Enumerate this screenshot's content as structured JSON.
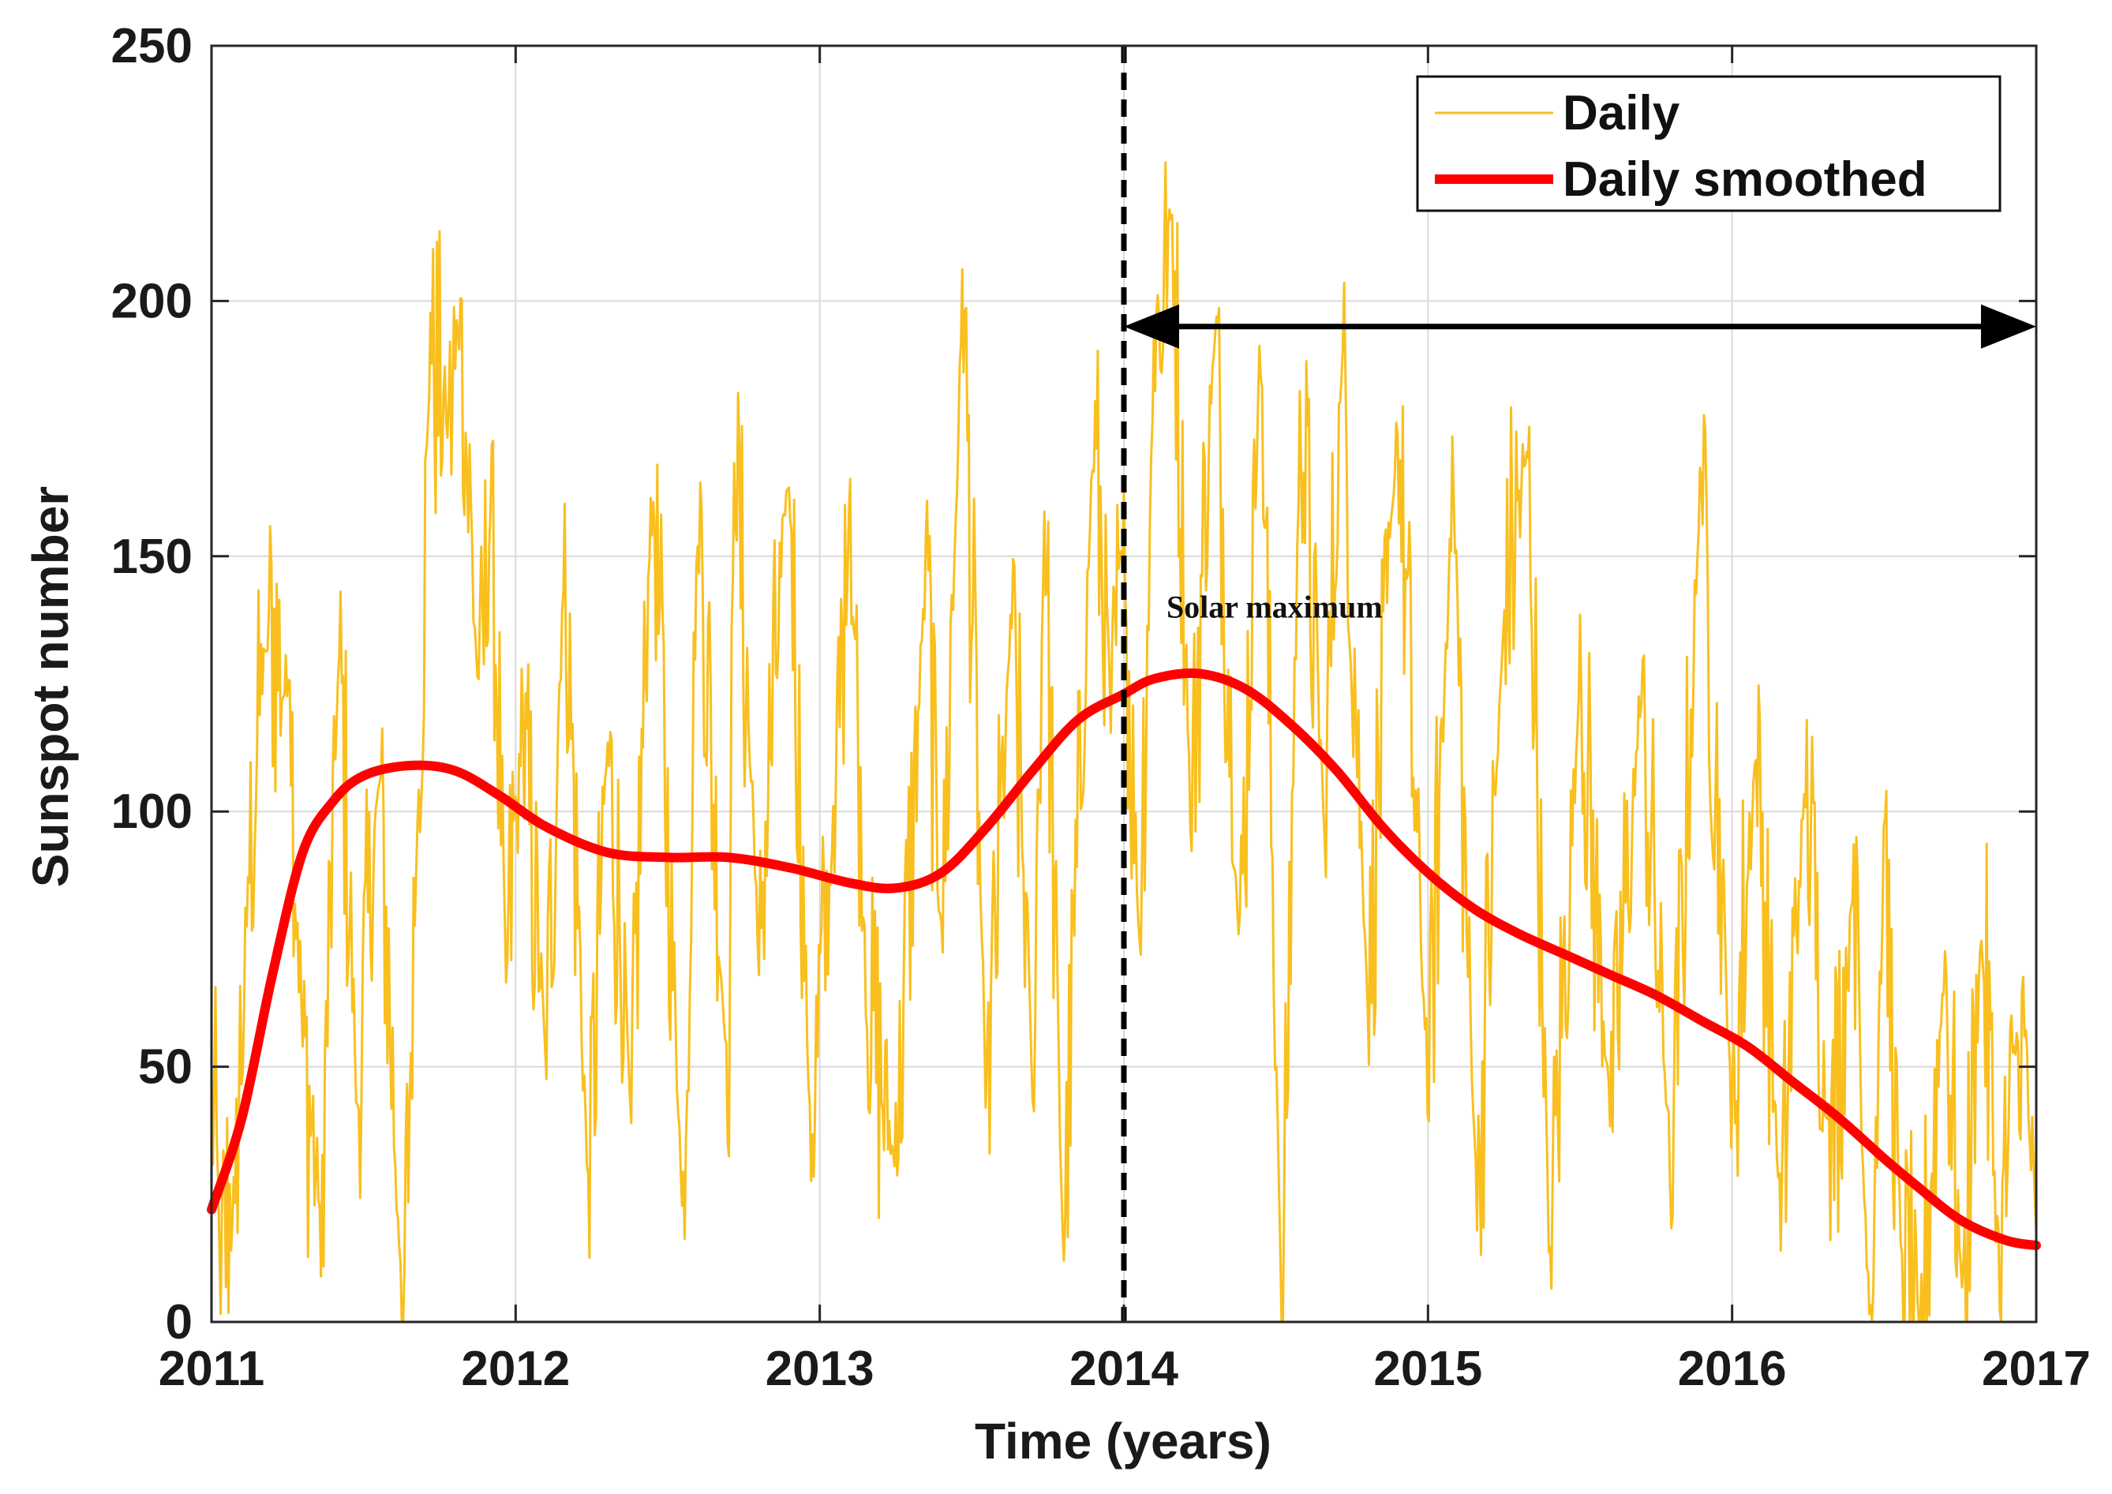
{
  "chart_data": {
    "type": "line",
    "xlabel": "Time (years)",
    "ylabel": "Sunspot number",
    "xlim": [
      2011,
      2017
    ],
    "ylim": [
      0,
      250
    ],
    "x_ticks": [
      2011,
      2012,
      2013,
      2014,
      2015,
      2016,
      2017
    ],
    "y_ticks": [
      0,
      50,
      100,
      150,
      200,
      250
    ],
    "grid": true,
    "legend_position": "top-right",
    "colors": {
      "daily": "#f9bf1e",
      "smoothed": "#ff0000",
      "marker": "#000000",
      "grid": "#d9d9d9"
    },
    "series": [
      {
        "name": "Daily",
        "style": "thin-line",
        "anchors": [
          [
            2011.0,
            46
          ],
          [
            2011.03,
            12
          ],
          [
            2011.08,
            30
          ],
          [
            2011.12,
            85
          ],
          [
            2011.18,
            140
          ],
          [
            2011.26,
            120
          ],
          [
            2011.3,
            55
          ],
          [
            2011.36,
            20
          ],
          [
            2011.42,
            135
          ],
          [
            2011.48,
            40
          ],
          [
            2011.55,
            110
          ],
          [
            2011.63,
            0
          ],
          [
            2011.68,
            105
          ],
          [
            2011.72,
            190
          ],
          [
            2011.78,
            175
          ],
          [
            2011.82,
            194
          ],
          [
            2011.88,
            120
          ],
          [
            2011.92,
            160
          ],
          [
            2011.97,
            70
          ],
          [
            2012.02,
            115
          ],
          [
            2012.1,
            55
          ],
          [
            2012.16,
            150
          ],
          [
            2012.24,
            25
          ],
          [
            2012.3,
            115
          ],
          [
            2012.38,
            45
          ],
          [
            2012.45,
            168
          ],
          [
            2012.55,
            20
          ],
          [
            2012.6,
            165
          ],
          [
            2012.7,
            40
          ],
          [
            2012.72,
            174
          ],
          [
            2012.8,
            75
          ],
          [
            2012.9,
            170
          ],
          [
            2012.97,
            35
          ],
          [
            2013.05,
            100
          ],
          [
            2013.1,
            162
          ],
          [
            2013.15,
            65
          ],
          [
            2013.25,
            30
          ],
          [
            2013.35,
            150
          ],
          [
            2013.4,
            70
          ],
          [
            2013.47,
            205
          ],
          [
            2013.55,
            40
          ],
          [
            2013.63,
            140
          ],
          [
            2013.7,
            50
          ],
          [
            2013.74,
            160
          ],
          [
            2013.8,
            12
          ],
          [
            2013.9,
            175
          ],
          [
            2013.96,
            120
          ],
          [
            2014.0,
            150
          ],
          [
            2014.05,
            75
          ],
          [
            2014.1,
            190
          ],
          [
            2014.16,
            219
          ],
          [
            2014.22,
            100
          ],
          [
            2014.3,
            198
          ],
          [
            2014.38,
            70
          ],
          [
            2014.45,
            196
          ],
          [
            2014.52,
            0
          ],
          [
            2014.58,
            180
          ],
          [
            2014.66,
            100
          ],
          [
            2014.72,
            195
          ],
          [
            2014.8,
            60
          ],
          [
            2014.9,
            177
          ],
          [
            2015.0,
            45
          ],
          [
            2015.08,
            165
          ],
          [
            2015.16,
            20
          ],
          [
            2015.25,
            140
          ],
          [
            2015.33,
            172
          ],
          [
            2015.4,
            15
          ],
          [
            2015.5,
            125
          ],
          [
            2015.6,
            40
          ],
          [
            2015.7,
            123
          ],
          [
            2015.8,
            30
          ],
          [
            2015.9,
            168
          ],
          [
            2016.0,
            40
          ],
          [
            2016.08,
            115
          ],
          [
            2016.16,
            20
          ],
          [
            2016.24,
            110
          ],
          [
            2016.32,
            30
          ],
          [
            2016.4,
            85
          ],
          [
            2016.45,
            0
          ],
          [
            2016.5,
            90
          ],
          [
            2016.56,
            10
          ],
          [
            2016.62,
            0
          ],
          [
            2016.7,
            70
          ],
          [
            2016.76,
            0
          ],
          [
            2016.82,
            80
          ],
          [
            2016.88,
            10
          ],
          [
            2016.94,
            60
          ],
          [
            2017.0,
            25
          ]
        ]
      },
      {
        "name": "Daily smoothed",
        "style": "thick-line",
        "points": [
          [
            2011.0,
            22
          ],
          [
            2011.1,
            40
          ],
          [
            2011.2,
            68
          ],
          [
            2011.3,
            92
          ],
          [
            2011.4,
            102
          ],
          [
            2011.5,
            107
          ],
          [
            2011.65,
            109
          ],
          [
            2011.8,
            108
          ],
          [
            2011.95,
            103
          ],
          [
            2012.1,
            97
          ],
          [
            2012.3,
            92
          ],
          [
            2012.5,
            91
          ],
          [
            2012.7,
            91
          ],
          [
            2012.9,
            89
          ],
          [
            2013.1,
            86
          ],
          [
            2013.25,
            85
          ],
          [
            2013.4,
            88
          ],
          [
            2013.55,
            97
          ],
          [
            2013.7,
            108
          ],
          [
            2013.85,
            118
          ],
          [
            2014.0,
            123
          ],
          [
            2014.1,
            126
          ],
          [
            2014.25,
            127
          ],
          [
            2014.4,
            124
          ],
          [
            2014.55,
            117
          ],
          [
            2014.7,
            108
          ],
          [
            2014.85,
            97
          ],
          [
            2015.0,
            88
          ],
          [
            2015.15,
            81
          ],
          [
            2015.3,
            76
          ],
          [
            2015.45,
            72
          ],
          [
            2015.6,
            68
          ],
          [
            2015.75,
            64
          ],
          [
            2015.9,
            59
          ],
          [
            2016.05,
            54
          ],
          [
            2016.2,
            47
          ],
          [
            2016.35,
            40
          ],
          [
            2016.5,
            32
          ],
          [
            2016.6,
            27
          ],
          [
            2016.75,
            20
          ],
          [
            2016.9,
            16
          ],
          [
            2017.0,
            15
          ]
        ]
      }
    ],
    "annotations": [
      {
        "type": "vertical-dashed-line",
        "x": 2014.0
      },
      {
        "type": "double-arrow",
        "x_start": 2014.0,
        "x_end": 2017.0,
        "y": 195
      },
      {
        "type": "text",
        "text": "Solar maximum",
        "x": 2014.14,
        "y": 138
      }
    ]
  }
}
